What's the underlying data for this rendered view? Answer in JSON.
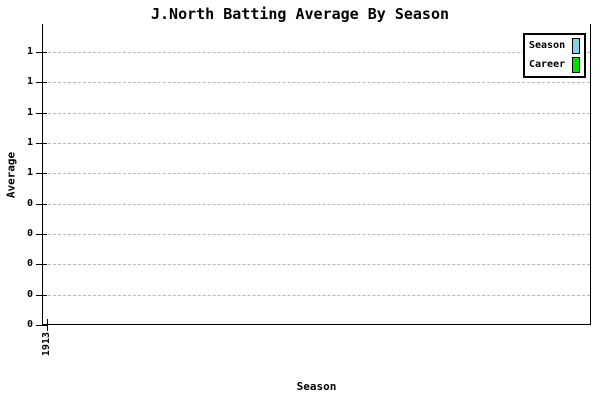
{
  "title": "J.North Batting Average By Season",
  "x_axis": {
    "label": "Season",
    "ticks": [
      {
        "label": "1913"
      }
    ]
  },
  "y_axis": {
    "label": "Average",
    "tick_labels": [
      "1",
      "1",
      "1",
      "1",
      "1",
      "0",
      "0",
      "0",
      "0",
      "0"
    ]
  },
  "legend": {
    "items": [
      {
        "label": "Season",
        "color": "#87CEEB"
      },
      {
        "label": "Career",
        "color": "#00DF00"
      }
    ]
  },
  "colors": {
    "background": "#ffffff",
    "axis": "#000000",
    "grid": "#b8b8b8",
    "season_swatch": "#87CEEB",
    "career_swatch": "#00DF00"
  },
  "chart_data": {
    "type": "bar",
    "title": "J.North Batting Average By Season",
    "xlabel": "Season",
    "ylabel": "Average",
    "categories": [
      "1913"
    ],
    "series": [
      {
        "name": "Season",
        "color": "#87CEEB",
        "values": []
      },
      {
        "name": "Career",
        "color": "#00DF00",
        "values": []
      }
    ],
    "y_tick_labels_top_to_bottom": [
      "1",
      "1",
      "1",
      "1",
      "1",
      "0",
      "0",
      "0",
      "0",
      "0"
    ],
    "grid": true,
    "grid_style": "dashed",
    "legend_position": "top-right",
    "plot_borders": [
      "left",
      "right",
      "bottom"
    ]
  }
}
